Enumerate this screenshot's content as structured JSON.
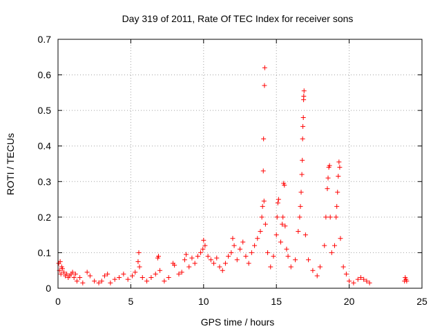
{
  "chart_data": {
    "type": "scatter",
    "title": "Day 319 of 2011, Rate Of TEC Index for receiver sons",
    "xlabel": "GPS time / hours",
    "ylabel": "ROTI / TECUs",
    "xlim": [
      0,
      25
    ],
    "ylim": [
      0,
      0.7
    ],
    "xticks": [
      0,
      5,
      10,
      15,
      20,
      25
    ],
    "xtick_labels": [
      "0",
      "5",
      "10",
      "15",
      "20",
      "25"
    ],
    "yticks": [
      0,
      0.1,
      0.2,
      0.3,
      0.4,
      0.5,
      0.6,
      0.7
    ],
    "ytick_labels": [
      "0",
      "0.1",
      "0.2",
      "0.3",
      "0.4",
      "0.5",
      "0.6",
      "0.7"
    ],
    "grid": true,
    "marker": "+",
    "color": "#ff0000",
    "series": [
      {
        "points": [
          [
            0.05,
            0.07
          ],
          [
            0.1,
            0.05
          ],
          [
            0.15,
            0.075
          ],
          [
            0.2,
            0.04
          ],
          [
            0.25,
            0.06
          ],
          [
            0.3,
            0.055
          ],
          [
            0.4,
            0.045
          ],
          [
            0.5,
            0.035
          ],
          [
            0.6,
            0.04
          ],
          [
            0.7,
            0.03
          ],
          [
            0.8,
            0.035
          ],
          [
            0.9,
            0.04
          ],
          [
            1.0,
            0.045
          ],
          [
            1.1,
            0.03
          ],
          [
            1.2,
            0.04
          ],
          [
            1.3,
            0.02
          ],
          [
            1.5,
            0.03
          ],
          [
            1.7,
            0.015
          ],
          [
            2.0,
            0.045
          ],
          [
            2.2,
            0.035
          ],
          [
            2.5,
            0.02
          ],
          [
            2.8,
            0.015
          ],
          [
            3.0,
            0.02
          ],
          [
            3.2,
            0.035
          ],
          [
            3.4,
            0.04
          ],
          [
            3.6,
            0.015
          ],
          [
            3.9,
            0.025
          ],
          [
            4.2,
            0.03
          ],
          [
            4.5,
            0.04
          ],
          [
            4.8,
            0.025
          ],
          [
            5.1,
            0.035
          ],
          [
            5.3,
            0.045
          ],
          [
            5.5,
            0.075
          ],
          [
            5.55,
            0.1
          ],
          [
            5.6,
            0.06
          ],
          [
            5.8,
            0.03
          ],
          [
            6.1,
            0.02
          ],
          [
            6.4,
            0.03
          ],
          [
            6.7,
            0.04
          ],
          [
            6.85,
            0.085
          ],
          [
            6.9,
            0.09
          ],
          [
            7.0,
            0.05
          ],
          [
            7.3,
            0.02
          ],
          [
            7.6,
            0.03
          ],
          [
            7.9,
            0.07
          ],
          [
            8.0,
            0.065
          ],
          [
            8.3,
            0.04
          ],
          [
            8.5,
            0.045
          ],
          [
            8.7,
            0.08
          ],
          [
            8.8,
            0.095
          ],
          [
            9.0,
            0.06
          ],
          [
            9.2,
            0.085
          ],
          [
            9.4,
            0.07
          ],
          [
            9.6,
            0.09
          ],
          [
            9.8,
            0.1
          ],
          [
            9.95,
            0.11
          ],
          [
            10.0,
            0.135
          ],
          [
            10.1,
            0.12
          ],
          [
            10.3,
            0.09
          ],
          [
            10.5,
            0.08
          ],
          [
            10.7,
            0.07
          ],
          [
            10.9,
            0.085
          ],
          [
            11.1,
            0.06
          ],
          [
            11.3,
            0.05
          ],
          [
            11.5,
            0.07
          ],
          [
            11.7,
            0.09
          ],
          [
            11.9,
            0.1
          ],
          [
            12.0,
            0.14
          ],
          [
            12.1,
            0.12
          ],
          [
            12.3,
            0.08
          ],
          [
            12.5,
            0.11
          ],
          [
            12.7,
            0.13
          ],
          [
            12.9,
            0.09
          ],
          [
            13.1,
            0.07
          ],
          [
            13.3,
            0.1
          ],
          [
            13.5,
            0.12
          ],
          [
            13.7,
            0.14
          ],
          [
            13.9,
            0.16
          ],
          [
            14.0,
            0.2
          ],
          [
            14.05,
            0.23
          ],
          [
            14.1,
            0.33
          ],
          [
            14.12,
            0.42
          ],
          [
            14.15,
            0.245
          ],
          [
            14.18,
            0.57
          ],
          [
            14.2,
            0.62
          ],
          [
            14.25,
            0.18
          ],
          [
            14.4,
            0.1
          ],
          [
            14.6,
            0.06
          ],
          [
            14.8,
            0.09
          ],
          [
            15.0,
            0.15
          ],
          [
            15.05,
            0.2
          ],
          [
            15.1,
            0.24
          ],
          [
            15.15,
            0.25
          ],
          [
            15.3,
            0.13
          ],
          [
            15.4,
            0.18
          ],
          [
            15.45,
            0.2
          ],
          [
            15.5,
            0.295
          ],
          [
            15.55,
            0.29
          ],
          [
            15.6,
            0.175
          ],
          [
            15.7,
            0.11
          ],
          [
            15.8,
            0.09
          ],
          [
            16.0,
            0.06
          ],
          [
            16.3,
            0.08
          ],
          [
            16.5,
            0.16
          ],
          [
            16.6,
            0.2
          ],
          [
            16.65,
            0.23
          ],
          [
            16.7,
            0.27
          ],
          [
            16.75,
            0.32
          ],
          [
            16.78,
            0.36
          ],
          [
            16.8,
            0.42
          ],
          [
            16.82,
            0.455
          ],
          [
            16.85,
            0.48
          ],
          [
            16.87,
            0.53
          ],
          [
            16.88,
            0.54
          ],
          [
            16.9,
            0.555
          ],
          [
            17.0,
            0.15
          ],
          [
            17.2,
            0.08
          ],
          [
            17.5,
            0.05
          ],
          [
            17.8,
            0.035
          ],
          [
            18.0,
            0.06
          ],
          [
            18.3,
            0.12
          ],
          [
            18.4,
            0.2
          ],
          [
            18.5,
            0.28
          ],
          [
            18.55,
            0.31
          ],
          [
            18.6,
            0.34
          ],
          [
            18.65,
            0.345
          ],
          [
            18.7,
            0.2
          ],
          [
            18.8,
            0.1
          ],
          [
            19.0,
            0.12
          ],
          [
            19.1,
            0.2
          ],
          [
            19.15,
            0.23
          ],
          [
            19.2,
            0.27
          ],
          [
            19.25,
            0.315
          ],
          [
            19.3,
            0.355
          ],
          [
            19.35,
            0.34
          ],
          [
            19.4,
            0.14
          ],
          [
            19.6,
            0.06
          ],
          [
            19.8,
            0.04
          ],
          [
            20.0,
            0.02
          ],
          [
            20.3,
            0.015
          ],
          [
            20.6,
            0.025
          ],
          [
            20.8,
            0.03
          ],
          [
            21.0,
            0.025
          ],
          [
            21.2,
            0.02
          ],
          [
            21.4,
            0.015
          ],
          [
            23.8,
            0.02
          ],
          [
            23.85,
            0.03
          ],
          [
            23.9,
            0.025
          ],
          [
            23.95,
            0.02
          ]
        ]
      }
    ]
  }
}
